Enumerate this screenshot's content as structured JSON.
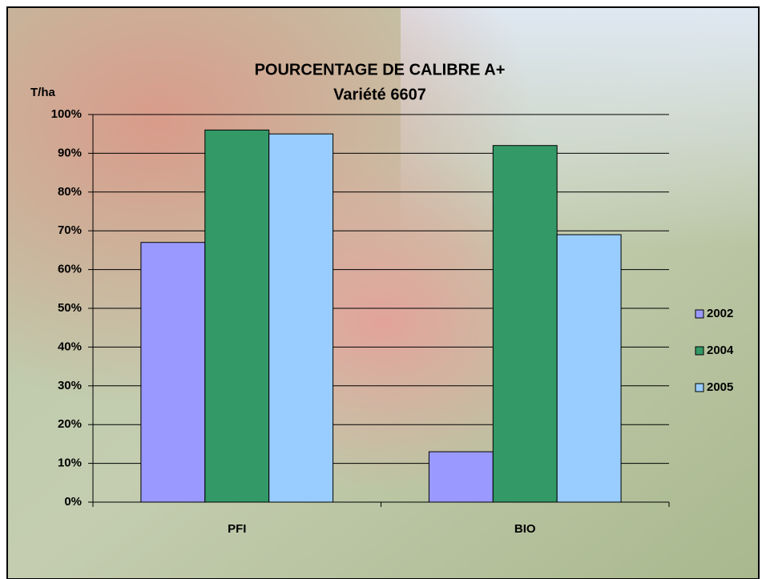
{
  "chart_data": {
    "type": "bar",
    "title": "POURCENTAGE DE CALIBRE A+",
    "subtitle": "Variété 6607",
    "y_label": "T/ha",
    "categories": [
      "PFI",
      "BIO"
    ],
    "series": [
      {
        "name": "2002",
        "color": "#9999ff",
        "values": [
          67,
          13
        ]
      },
      {
        "name": "2004",
        "color": "#339966",
        "values": [
          96,
          92
        ]
      },
      {
        "name": "2005",
        "color": "#99ccff",
        "values": [
          95,
          69
        ]
      }
    ],
    "ylim": [
      0,
      100
    ],
    "yticks": [
      {
        "value": 0,
        "label": "0%"
      },
      {
        "value": 10,
        "label": "10%"
      },
      {
        "value": 20,
        "label": "20%"
      },
      {
        "value": 30,
        "label": "30%"
      },
      {
        "value": 40,
        "label": "40%"
      },
      {
        "value": 50,
        "label": "50%"
      },
      {
        "value": 60,
        "label": "60%"
      },
      {
        "value": 70,
        "label": "70%"
      },
      {
        "value": 80,
        "label": "80%"
      },
      {
        "value": 90,
        "label": "90%"
      },
      {
        "value": 100,
        "label": "100%"
      }
    ],
    "grid": true,
    "legend": "right"
  }
}
